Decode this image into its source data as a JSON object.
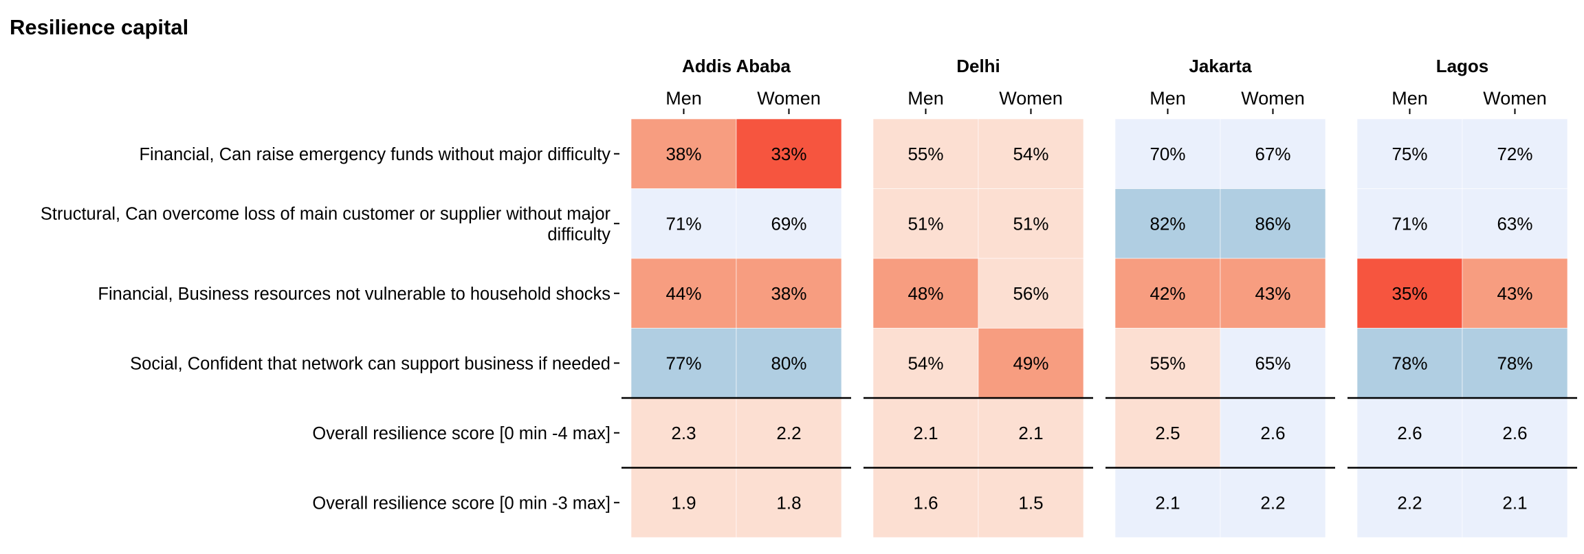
{
  "chart_data": {
    "type": "heatmap",
    "title": "Resilience capital",
    "facets": [
      "Addis Ababa",
      "Delhi",
      "Jakarta",
      "Lagos"
    ],
    "columns": [
      "Men",
      "Women"
    ],
    "rows": [
      {
        "label_lines": [
          "Financial, Can raise emergency funds without major difficulty"
        ]
      },
      {
        "label_lines": [
          "Structural, Can overcome loss of main customer or supplier without major",
          "difficulty"
        ]
      },
      {
        "label_lines": [
          "Financial, Business resources not vulnerable to household shocks"
        ]
      },
      {
        "label_lines": [
          "Social, Confident that network can support business if needed"
        ]
      },
      {
        "label_lines": [
          "Overall resilience score [0 min -4 max]"
        ]
      },
      {
        "label_lines": [
          "Overall resilience score [0 min -3 max]"
        ]
      }
    ],
    "cells": [
      [
        [
          "38%",
          "33%"
        ],
        [
          "55%",
          "54%"
        ],
        [
          "70%",
          "67%"
        ],
        [
          "75%",
          "72%"
        ]
      ],
      [
        [
          "71%",
          "69%"
        ],
        [
          "51%",
          "51%"
        ],
        [
          "82%",
          "86%"
        ],
        [
          "71%",
          "63%"
        ]
      ],
      [
        [
          "44%",
          "38%"
        ],
        [
          "48%",
          "56%"
        ],
        [
          "42%",
          "43%"
        ],
        [
          "35%",
          "43%"
        ]
      ],
      [
        [
          "77%",
          "80%"
        ],
        [
          "54%",
          "49%"
        ],
        [
          "55%",
          "65%"
        ],
        [
          "78%",
          "78%"
        ]
      ],
      [
        [
          "2.3",
          "2.2"
        ],
        [
          "2.1",
          "2.1"
        ],
        [
          "2.5",
          "2.6"
        ],
        [
          "2.6",
          "2.6"
        ]
      ],
      [
        [
          "1.9",
          "1.8"
        ],
        [
          "1.6",
          "1.5"
        ],
        [
          "2.1",
          "2.2"
        ],
        [
          "2.2",
          "2.1"
        ]
      ]
    ],
    "color_levels": [
      [
        [
          "2",
          "0"
        ],
        [
          "3",
          "3"
        ],
        [
          "4",
          "4"
        ],
        [
          "4",
          "4"
        ]
      ],
      [
        [
          "4",
          "4"
        ],
        [
          "3",
          "3"
        ],
        [
          "5",
          "5"
        ],
        [
          "4",
          "4"
        ]
      ],
      [
        [
          "2",
          "2"
        ],
        [
          "2",
          "3"
        ],
        [
          "2",
          "2"
        ],
        [
          "1",
          "2"
        ]
      ],
      [
        [
          "5",
          "5"
        ],
        [
          "3",
          "2"
        ],
        [
          "3",
          "4"
        ],
        [
          "5",
          "5"
        ]
      ],
      [
        [
          "3",
          "3"
        ],
        [
          "3",
          "3"
        ],
        [
          "3",
          "4"
        ],
        [
          "4",
          "4"
        ]
      ],
      [
        [
          "3",
          "3"
        ],
        [
          "3",
          "3"
        ],
        [
          "4",
          "4"
        ],
        [
          "4",
          "4"
        ]
      ]
    ],
    "palette": {
      "0": "#f6553f",
      "1": "#f6553f",
      "2": "#f79d80",
      "3": "#fcdfd2",
      "4": "#eaf0fc",
      "5": "#b0cee2"
    },
    "separator_after_rows": [
      3,
      4
    ],
    "grid": false
  }
}
